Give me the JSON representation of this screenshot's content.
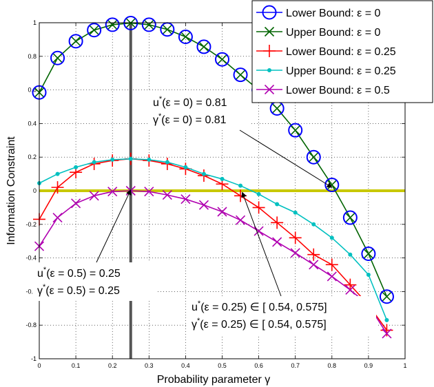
{
  "chart_data": {
    "type": "line",
    "xlabel": "Probability parameter γ",
    "ylabel": "Information Constraint",
    "xlim": [
      0,
      1
    ],
    "ylim": [
      -1,
      1
    ],
    "xticks": [
      "0",
      "0.1",
      "0.2",
      "0.3",
      "0.4",
      "0.5",
      "0.6",
      "0.7",
      "0.8",
      "0.9",
      "1"
    ],
    "yticks": [
      "-1",
      "-0.8",
      "-0.6",
      "-0.4",
      "-0.2",
      "0",
      "0.2",
      "0.4",
      "0.6",
      "0.8",
      "1"
    ],
    "grid": true,
    "legend_position": "top-right",
    "reference_lines": [
      {
        "orientation": "horizontal",
        "value": 0,
        "color": "#c8c800"
      },
      {
        "orientation": "vertical",
        "value": 0.25,
        "color": "#555555"
      }
    ],
    "series": [
      {
        "name": "Lower Bound: ε = 0",
        "color": "#0000ff",
        "marker": "circle",
        "line": false,
        "x": [
          0,
          0.05,
          0.1,
          0.15,
          0.2,
          0.25,
          0.3,
          0.35,
          0.4,
          0.45,
          0.5,
          0.55,
          0.6,
          0.65,
          0.7,
          0.75,
          0.8,
          0.85,
          0.9,
          0.95
        ],
        "y": [
          0.585,
          0.79,
          0.89,
          0.956,
          0.988,
          0.998,
          0.988,
          0.96,
          0.916,
          0.857,
          0.782,
          0.69,
          0.6,
          0.49,
          0.36,
          0.2,
          0.035,
          -0.16,
          -0.375,
          -0.63
        ]
      },
      {
        "name": "Upper Bound: ε = 0",
        "color": "#006400",
        "marker": "x",
        "line": true,
        "x": [
          0,
          0.05,
          0.1,
          0.15,
          0.2,
          0.25,
          0.3,
          0.35,
          0.4,
          0.45,
          0.5,
          0.55,
          0.6,
          0.65,
          0.7,
          0.75,
          0.8,
          0.85,
          0.9,
          0.95
        ],
        "y": [
          0.585,
          0.79,
          0.89,
          0.956,
          0.988,
          0.998,
          0.988,
          0.96,
          0.916,
          0.857,
          0.782,
          0.69,
          0.6,
          0.49,
          0.36,
          0.2,
          0.035,
          -0.16,
          -0.375,
          -0.63
        ]
      },
      {
        "name": "Lower Bound: ε = 0.25",
        "color": "#ff0000",
        "marker": "plus",
        "line": true,
        "x": [
          0,
          0.05,
          0.1,
          0.15,
          0.2,
          0.25,
          0.3,
          0.35,
          0.4,
          0.45,
          0.5,
          0.55,
          0.6,
          0.65,
          0.7,
          0.75,
          0.8,
          0.85,
          0.9,
          0.95
        ],
        "y": [
          -0.17,
          0.02,
          0.11,
          0.16,
          0.18,
          0.19,
          0.18,
          0.16,
          0.13,
          0.09,
          0.04,
          -0.03,
          -0.1,
          -0.19,
          -0.28,
          -0.38,
          -0.44,
          -0.56,
          -0.68,
          -0.83
        ]
      },
      {
        "name": "Upper Bound: ε = 0.25",
        "color": "#00c0c0",
        "marker": "dot",
        "line": true,
        "x": [
          0,
          0.05,
          0.1,
          0.15,
          0.2,
          0.25,
          0.3,
          0.35,
          0.4,
          0.45,
          0.5,
          0.55,
          0.6,
          0.65,
          0.7,
          0.75,
          0.8,
          0.85,
          0.9,
          0.95
        ],
        "y": [
          0.045,
          0.1,
          0.14,
          0.17,
          0.185,
          0.19,
          0.185,
          0.17,
          0.14,
          0.1,
          0.07,
          0.03,
          -0.02,
          -0.08,
          -0.13,
          -0.2,
          -0.28,
          -0.38,
          -0.5,
          -0.77
        ]
      },
      {
        "name": "Lower Bound: ε = 0.5",
        "color": "#b000b0",
        "marker": "x",
        "line": true,
        "x": [
          0,
          0.05,
          0.1,
          0.15,
          0.2,
          0.25,
          0.3,
          0.35,
          0.4,
          0.45,
          0.5,
          0.55,
          0.6,
          0.65,
          0.7,
          0.75,
          0.8,
          0.85,
          0.9,
          0.95
        ],
        "y": [
          -0.33,
          -0.16,
          -0.075,
          -0.03,
          -0.005,
          0.0,
          -0.005,
          -0.025,
          -0.05,
          -0.085,
          -0.125,
          -0.175,
          -0.24,
          -0.305,
          -0.37,
          -0.44,
          -0.51,
          -0.59,
          -0.68,
          -0.85
        ]
      }
    ],
    "annotations": [
      {
        "lines": [
          {
            "base": "u",
            "sup": "*",
            "rest": "(ε = 0) = 0.81"
          },
          {
            "base": "γ",
            "sup": "*",
            "rest": "(ε = 0) = 0.81"
          }
        ],
        "target": [
          0.8,
          0.02
        ]
      },
      {
        "lines": [
          {
            "base": "u",
            "sup": "*",
            "rest": "(ε = 0.5) = 0.25"
          },
          {
            "base": "γ",
            "sup": "*",
            "rest": "(ε = 0.5) = 0.25"
          }
        ],
        "target": [
          0.25,
          0.005
        ]
      },
      {
        "lines": [
          {
            "base": "u",
            "sup": "*",
            "rest": "(ε = 0.25)  ∈  [ 0.54,  0.575]"
          },
          {
            "base": "γ",
            "sup": "*",
            "rest": "(ε = 0.25)  ∈  [ 0.54,  0.575]"
          }
        ],
        "target": [
          0.555,
          -0.01
        ]
      }
    ]
  }
}
